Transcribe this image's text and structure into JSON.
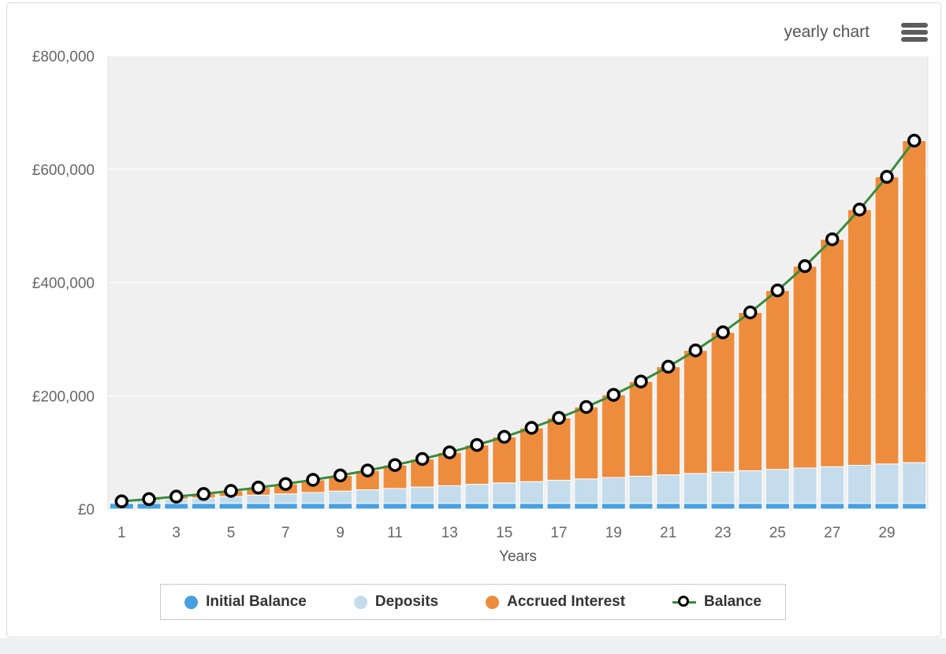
{
  "header": {
    "title": "yearly chart",
    "menu_icon": "hamburger-menu-icon"
  },
  "chart_data": {
    "type": "bar",
    "stacked": true,
    "title": "",
    "xlabel": "Years",
    "ylabel": "",
    "ylim": [
      0,
      800000
    ],
    "grid": true,
    "legend_position": "bottom",
    "currency": "GBP",
    "ytick_values": [
      0,
      200000,
      400000,
      600000,
      800000
    ],
    "ytick_labels": [
      "£0",
      "£200,000",
      "£400,000",
      "£600,000",
      "£800,000"
    ],
    "xtick_labels_shown": [
      1,
      3,
      5,
      7,
      9,
      11,
      13,
      15,
      17,
      19,
      21,
      23,
      25,
      27,
      29
    ],
    "categories": [
      1,
      2,
      3,
      4,
      5,
      6,
      7,
      8,
      9,
      10,
      11,
      12,
      13,
      14,
      15,
      16,
      17,
      18,
      19,
      20,
      21,
      22,
      23,
      24,
      25,
      26,
      27,
      28,
      29,
      30
    ],
    "series": [
      {
        "name": "Initial Balance",
        "type": "column",
        "color": "#47a0e0",
        "values": [
          10000,
          10000,
          10000,
          10000,
          10000,
          10000,
          10000,
          10000,
          10000,
          10000,
          10000,
          10000,
          10000,
          10000,
          10000,
          10000,
          10000,
          10000,
          10000,
          10000,
          10000,
          10000,
          10000,
          10000,
          10000,
          10000,
          10000,
          10000,
          10000,
          10000
        ]
      },
      {
        "name": "Deposits",
        "type": "column",
        "color": "#c4dcec",
        "values": [
          2400,
          4800,
          7200,
          9600,
          12000,
          14400,
          16800,
          19200,
          21600,
          24000,
          26400,
          28800,
          31200,
          33600,
          36000,
          38400,
          40800,
          43200,
          45600,
          48000,
          50400,
          52800,
          55200,
          57600,
          60000,
          62400,
          64800,
          67200,
          69600,
          72000
        ]
      },
      {
        "name": "Accrued Interest",
        "type": "column",
        "color": "#ee8c3d",
        "values": [
          1160,
          2693,
          4638,
          7038,
          9941,
          13398,
          17469,
          22218,
          27715,
          34039,
          41277,
          49524,
          58886,
          69479,
          81433,
          94890,
          110008,
          126960,
          145938,
          167155,
          190844,
          217266,
          246706,
          279479,
          315936,
          356462,
          401482,
          451468,
          506940,
          568472
        ]
      },
      {
        "name": "Balance",
        "type": "line",
        "color": "#3a8b3c",
        "marker": "open-circle",
        "marker_fill": "#ffffff",
        "marker_stroke": "#000000",
        "values": [
          13560,
          17493,
          21838,
          26638,
          31941,
          37798,
          44269,
          51418,
          59315,
          68039,
          77677,
          88324,
          100086,
          113079,
          127433,
          143290,
          160808,
          180160,
          201538,
          225155,
          251244,
          280066,
          311906,
          347079,
          385936,
          428862,
          476282,
          528668,
          586540,
          650472
        ]
      }
    ],
    "plot_background": "#f0f0f0",
    "gridline_color": "#ffffff"
  }
}
